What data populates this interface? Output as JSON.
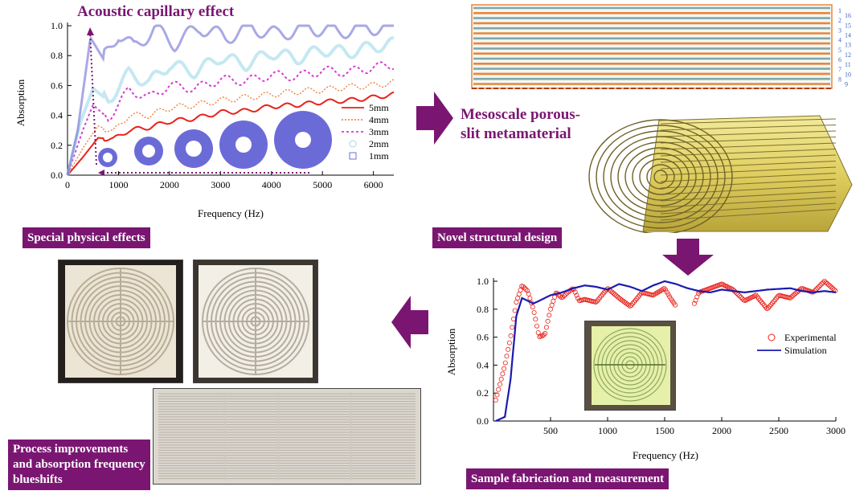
{
  "panel1": {
    "title": "Acoustic capillary effect",
    "xlabel": "Frequency (Hz)",
    "ylabel": "Absorption",
    "yticks": [
      "0.0",
      "0.2",
      "0.4",
      "0.6",
      "0.8",
      "1.0"
    ],
    "xticks": [
      "0",
      "1000",
      "2000",
      "3000",
      "4000",
      "5000",
      "6000"
    ],
    "legend": [
      "5mm",
      "4mm",
      "3mm",
      "2mm",
      "1mm"
    ]
  },
  "panel2": {
    "title": "Mesoscale porous-slit metamaterial",
    "layer_numbers": [
      "1",
      "16",
      "2",
      "15",
      "3",
      "14",
      "4",
      "13",
      "5",
      "12",
      "6",
      "11",
      "7",
      "10",
      "8",
      "9"
    ]
  },
  "panel3": {
    "xlabel": "Frequency (Hz)",
    "ylabel": "Absorption",
    "yticks": [
      "0.0",
      "0.2",
      "0.4",
      "0.6",
      "0.8",
      "1.0"
    ],
    "xticks": [
      "500",
      "1000",
      "1500",
      "2000",
      "2500",
      "3000"
    ],
    "legend": [
      "Experimental",
      "Simulation"
    ]
  },
  "labels": {
    "special": "Special physical effects",
    "novel": "Novel structural design",
    "sample": "Sample fabrication and measurement",
    "process": "Process improvements and absorption frequency blueshifts"
  },
  "colors": {
    "accent": "#7a1672",
    "c5": "#e8221b",
    "c4": "#f0894a",
    "c3": "#d63bd4",
    "c2": "#9fd8ea",
    "c1": "#6f6fd6",
    "sim": "#1a1ab0",
    "exp": "#e8221b"
  },
  "chart_data": [
    {
      "type": "line",
      "title": "Acoustic capillary effect",
      "xlabel": "Frequency (Hz)",
      "ylabel": "Absorption",
      "xlim": [
        0,
        6400
      ],
      "ylim": [
        0,
        1.0
      ],
      "series": [
        {
          "name": "5mm",
          "x": [
            0,
            300,
            600,
            900,
            1200,
            1600,
            2000,
            2500,
            3000,
            3500,
            4000,
            4500,
            5000,
            5500,
            6000,
            6400
          ],
          "values": [
            0,
            0.12,
            0.25,
            0.24,
            0.3,
            0.32,
            0.36,
            0.38,
            0.42,
            0.43,
            0.46,
            0.47,
            0.49,
            0.5,
            0.52,
            0.54
          ]
        },
        {
          "name": "4mm",
          "x": [
            0,
            300,
            600,
            900,
            1200,
            1600,
            2000,
            2500,
            3000,
            3500,
            4000,
            4500,
            5000,
            5500,
            6000,
            6400
          ],
          "values": [
            0,
            0.18,
            0.33,
            0.29,
            0.4,
            0.4,
            0.45,
            0.47,
            0.5,
            0.52,
            0.54,
            0.56,
            0.57,
            0.59,
            0.6,
            0.62
          ]
        },
        {
          "name": "3mm",
          "x": [
            0,
            300,
            500,
            800,
            1200,
            1600,
            2000,
            2500,
            3000,
            3500,
            4000,
            4500,
            5000,
            5500,
            6000,
            6400
          ],
          "values": [
            0,
            0.3,
            0.47,
            0.38,
            0.57,
            0.52,
            0.6,
            0.58,
            0.64,
            0.63,
            0.67,
            0.66,
            0.7,
            0.69,
            0.72,
            0.74
          ]
        },
        {
          "name": "2mm",
          "x": [
            0,
            250,
            500,
            800,
            1200,
            1600,
            2000,
            2500,
            3000,
            3500,
            4000,
            4500,
            5000,
            5500,
            6000,
            6400
          ],
          "values": [
            0,
            0.35,
            0.58,
            0.5,
            0.68,
            0.62,
            0.74,
            0.69,
            0.79,
            0.74,
            0.82,
            0.78,
            0.84,
            0.82,
            0.86,
            0.88
          ]
        },
        {
          "name": "1mm",
          "x": [
            0,
            200,
            450,
            700,
            1000,
            1300,
            1700,
            2100,
            2600,
            3100,
            3600,
            4100,
            4700,
            5300,
            5900,
            6400
          ],
          "values": [
            0,
            0.3,
            0.92,
            0.78,
            0.95,
            0.85,
            0.98,
            0.88,
            0.99,
            0.92,
            0.99,
            0.94,
            0.99,
            0.96,
            0.99,
            0.98
          ]
        }
      ]
    },
    {
      "type": "line",
      "xlabel": "Frequency (Hz)",
      "ylabel": "Absorption",
      "xlim": [
        0,
        3000
      ],
      "ylim": [
        0,
        1.0
      ],
      "series": [
        {
          "name": "Experimental",
          "x": [
            20,
            100,
            150,
            200,
            250,
            300,
            350,
            400,
            450,
            500,
            550,
            600,
            650,
            700,
            750,
            800,
            900,
            1000,
            1100,
            1200,
            1300,
            1400,
            1500,
            1550,
            1600,
            1750,
            1800,
            1900,
            2000,
            2100,
            2200,
            2300,
            2400,
            2500,
            2600,
            2700,
            2800,
            2900,
            3000
          ],
          "values": [
            0.15,
            0.4,
            0.6,
            0.85,
            0.97,
            0.93,
            0.8,
            0.6,
            0.62,
            0.8,
            0.92,
            0.88,
            0.92,
            0.95,
            0.86,
            0.87,
            0.85,
            0.95,
            0.88,
            0.82,
            0.92,
            0.9,
            0.95,
            0.88,
            0.82,
            0.82,
            0.92,
            0.95,
            0.98,
            0.94,
            0.86,
            0.9,
            0.8,
            0.9,
            0.88,
            0.95,
            0.92,
            1.0,
            0.93
          ]
        },
        {
          "name": "Simulation",
          "x": [
            20,
            100,
            150,
            200,
            250,
            300,
            350,
            400,
            500,
            600,
            700,
            800,
            900,
            1000,
            1100,
            1200,
            1300,
            1400,
            1500,
            1600,
            1700,
            1800,
            1900,
            2000,
            2200,
            2400,
            2600,
            2700,
            2800,
            2900,
            3000
          ],
          "values": [
            0,
            0.03,
            0.3,
            0.75,
            0.88,
            0.86,
            0.84,
            0.86,
            0.9,
            0.92,
            0.95,
            0.97,
            0.96,
            0.94,
            0.98,
            0.96,
            0.93,
            0.97,
            1.0,
            0.98,
            0.95,
            0.93,
            0.92,
            0.94,
            0.92,
            0.94,
            0.95,
            0.93,
            0.92,
            0.93,
            0.92
          ]
        }
      ]
    }
  ]
}
